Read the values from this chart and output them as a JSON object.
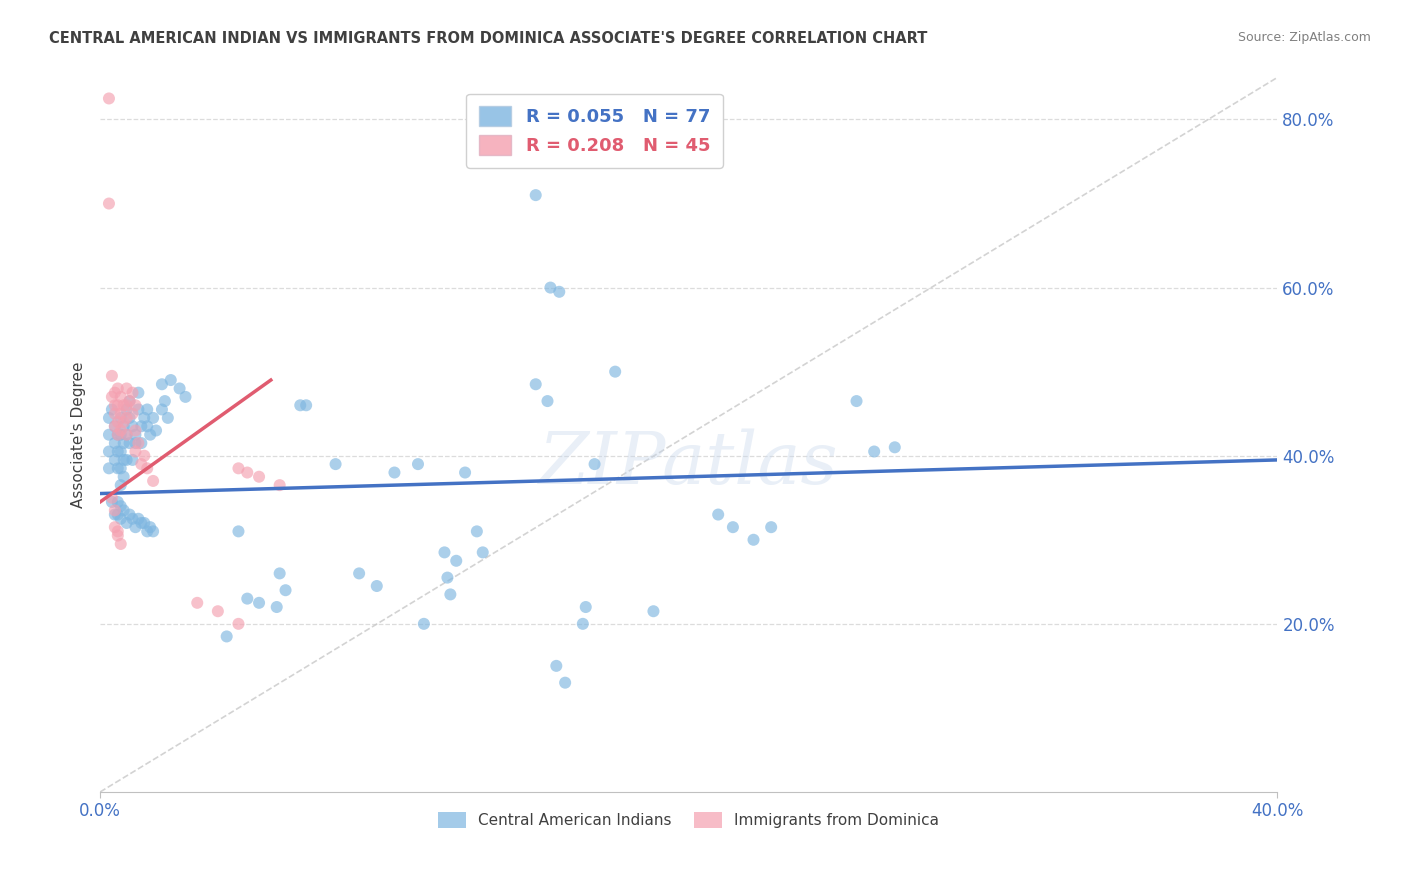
{
  "title": "CENTRAL AMERICAN INDIAN VS IMMIGRANTS FROM DOMINICA ASSOCIATE'S DEGREE CORRELATION CHART",
  "source": "Source: ZipAtlas.com",
  "ylabel": "Associate's Degree",
  "xmin": 0.0,
  "xmax": 0.4,
  "ymin": 0.0,
  "ymax": 0.85,
  "yticks": [
    0.2,
    0.4,
    0.6,
    0.8
  ],
  "ytick_labels": [
    "20.0%",
    "40.0%",
    "60.0%",
    "80.0%"
  ],
  "xticks": [
    0.0,
    0.4
  ],
  "xtick_labels": [
    "0.0%",
    "40.0%"
  ],
  "watermark": "ZIPatlas",
  "blue_scatter": [
    [
      0.003,
      0.445
    ],
    [
      0.003,
      0.425
    ],
    [
      0.003,
      0.405
    ],
    [
      0.003,
      0.385
    ],
    [
      0.004,
      0.455
    ],
    [
      0.005,
      0.435
    ],
    [
      0.005,
      0.415
    ],
    [
      0.005,
      0.395
    ],
    [
      0.006,
      0.425
    ],
    [
      0.006,
      0.405
    ],
    [
      0.006,
      0.385
    ],
    [
      0.007,
      0.445
    ],
    [
      0.007,
      0.425
    ],
    [
      0.007,
      0.405
    ],
    [
      0.007,
      0.385
    ],
    [
      0.007,
      0.365
    ],
    [
      0.008,
      0.435
    ],
    [
      0.008,
      0.415
    ],
    [
      0.008,
      0.395
    ],
    [
      0.008,
      0.375
    ],
    [
      0.009,
      0.455
    ],
    [
      0.009,
      0.425
    ],
    [
      0.009,
      0.395
    ],
    [
      0.01,
      0.465
    ],
    [
      0.01,
      0.445
    ],
    [
      0.01,
      0.415
    ],
    [
      0.011,
      0.395
    ],
    [
      0.011,
      0.435
    ],
    [
      0.012,
      0.415
    ],
    [
      0.012,
      0.425
    ],
    [
      0.013,
      0.475
    ],
    [
      0.013,
      0.455
    ],
    [
      0.014,
      0.435
    ],
    [
      0.014,
      0.415
    ],
    [
      0.015,
      0.445
    ],
    [
      0.016,
      0.435
    ],
    [
      0.016,
      0.455
    ],
    [
      0.017,
      0.425
    ],
    [
      0.018,
      0.445
    ],
    [
      0.019,
      0.43
    ],
    [
      0.021,
      0.485
    ],
    [
      0.021,
      0.455
    ],
    [
      0.022,
      0.465
    ],
    [
      0.023,
      0.445
    ],
    [
      0.024,
      0.49
    ],
    [
      0.027,
      0.48
    ],
    [
      0.029,
      0.47
    ],
    [
      0.004,
      0.345
    ],
    [
      0.005,
      0.33
    ],
    [
      0.006,
      0.345
    ],
    [
      0.006,
      0.33
    ],
    [
      0.007,
      0.34
    ],
    [
      0.007,
      0.325
    ],
    [
      0.008,
      0.335
    ],
    [
      0.009,
      0.32
    ],
    [
      0.01,
      0.33
    ],
    [
      0.011,
      0.325
    ],
    [
      0.012,
      0.315
    ],
    [
      0.013,
      0.325
    ],
    [
      0.014,
      0.32
    ],
    [
      0.015,
      0.32
    ],
    [
      0.016,
      0.31
    ],
    [
      0.017,
      0.315
    ],
    [
      0.018,
      0.31
    ],
    [
      0.043,
      0.185
    ],
    [
      0.047,
      0.31
    ],
    [
      0.05,
      0.23
    ],
    [
      0.054,
      0.225
    ],
    [
      0.06,
      0.22
    ],
    [
      0.061,
      0.26
    ],
    [
      0.063,
      0.24
    ],
    [
      0.068,
      0.46
    ],
    [
      0.07,
      0.46
    ],
    [
      0.08,
      0.39
    ],
    [
      0.088,
      0.26
    ],
    [
      0.094,
      0.245
    ],
    [
      0.1,
      0.38
    ],
    [
      0.108,
      0.39
    ],
    [
      0.11,
      0.2
    ],
    [
      0.117,
      0.285
    ],
    [
      0.118,
      0.255
    ],
    [
      0.119,
      0.235
    ],
    [
      0.121,
      0.275
    ],
    [
      0.124,
      0.38
    ],
    [
      0.128,
      0.31
    ],
    [
      0.13,
      0.285
    ],
    [
      0.148,
      0.485
    ],
    [
      0.152,
      0.465
    ],
    [
      0.155,
      0.15
    ],
    [
      0.158,
      0.13
    ],
    [
      0.164,
      0.2
    ],
    [
      0.165,
      0.22
    ],
    [
      0.168,
      0.39
    ],
    [
      0.175,
      0.5
    ],
    [
      0.188,
      0.215
    ],
    [
      0.21,
      0.33
    ],
    [
      0.215,
      0.315
    ],
    [
      0.222,
      0.3
    ],
    [
      0.228,
      0.315
    ],
    [
      0.257,
      0.465
    ],
    [
      0.263,
      0.405
    ],
    [
      0.27,
      0.41
    ],
    [
      0.148,
      0.71
    ],
    [
      0.153,
      0.6
    ],
    [
      0.156,
      0.595
    ]
  ],
  "pink_scatter": [
    [
      0.003,
      0.825
    ],
    [
      0.003,
      0.7
    ],
    [
      0.004,
      0.495
    ],
    [
      0.004,
      0.47
    ],
    [
      0.005,
      0.46
    ],
    [
      0.005,
      0.475
    ],
    [
      0.005,
      0.45
    ],
    [
      0.005,
      0.435
    ],
    [
      0.006,
      0.48
    ],
    [
      0.006,
      0.46
    ],
    [
      0.006,
      0.44
    ],
    [
      0.006,
      0.425
    ],
    [
      0.007,
      0.47
    ],
    [
      0.007,
      0.45
    ],
    [
      0.007,
      0.43
    ],
    [
      0.008,
      0.46
    ],
    [
      0.008,
      0.44
    ],
    [
      0.009,
      0.48
    ],
    [
      0.009,
      0.46
    ],
    [
      0.009,
      0.445
    ],
    [
      0.009,
      0.425
    ],
    [
      0.01,
      0.465
    ],
    [
      0.011,
      0.475
    ],
    [
      0.011,
      0.45
    ],
    [
      0.012,
      0.46
    ],
    [
      0.012,
      0.43
    ],
    [
      0.012,
      0.405
    ],
    [
      0.013,
      0.415
    ],
    [
      0.014,
      0.39
    ],
    [
      0.015,
      0.4
    ],
    [
      0.016,
      0.385
    ],
    [
      0.018,
      0.37
    ],
    [
      0.004,
      0.35
    ],
    [
      0.005,
      0.335
    ],
    [
      0.005,
      0.315
    ],
    [
      0.006,
      0.305
    ],
    [
      0.006,
      0.31
    ],
    [
      0.007,
      0.295
    ],
    [
      0.033,
      0.225
    ],
    [
      0.04,
      0.215
    ],
    [
      0.047,
      0.2
    ],
    [
      0.047,
      0.385
    ],
    [
      0.05,
      0.38
    ],
    [
      0.054,
      0.375
    ],
    [
      0.061,
      0.365
    ]
  ],
  "blue_line": {
    "x": [
      0.0,
      0.4
    ],
    "y": [
      0.355,
      0.395
    ]
  },
  "pink_line": {
    "x": [
      0.0,
      0.058
    ],
    "y": [
      0.345,
      0.49
    ]
  },
  "dashed_line": {
    "x": [
      0.0,
      0.4
    ],
    "y": [
      0.0,
      0.85
    ]
  },
  "blue_color": "#7EB6E0",
  "pink_color": "#F4A0B0",
  "blue_line_color": "#4472C4",
  "pink_line_color": "#E05C70",
  "dashed_line_color": "#C8C8C8",
  "axis_label_color": "#4472C4",
  "title_color": "#404040",
  "source_color": "#808080",
  "background_color": "#FFFFFF",
  "grid_color": "#DCDCDC",
  "marker_size": 75
}
